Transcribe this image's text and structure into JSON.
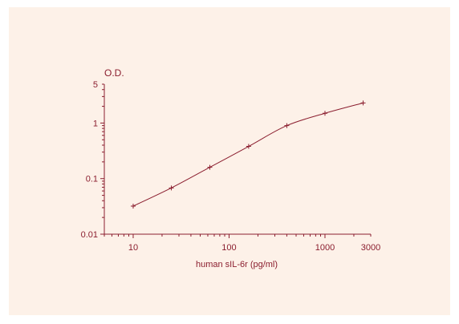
{
  "chart_data": {
    "type": "line",
    "title": "",
    "xlabel": "human sIL-6r (pg/ml)",
    "ylabel": "O.D.",
    "xscale": "log",
    "yscale": "log",
    "xlim": [
      5,
      3000
    ],
    "ylim": [
      0.01,
      5
    ],
    "xticks": [
      10,
      100,
      1000,
      3000
    ],
    "yticks": [
      0.01,
      0.1,
      1,
      5
    ],
    "grid": false,
    "series": [
      {
        "x": [
          10,
          25,
          63,
          160,
          400,
          1000,
          2500
        ],
        "y": [
          0.032,
          0.068,
          0.16,
          0.38,
          0.9,
          1.5,
          2.3
        ]
      }
    ],
    "colors": {
      "line": "#8b1e2f",
      "background": "#fdf1e8"
    }
  }
}
